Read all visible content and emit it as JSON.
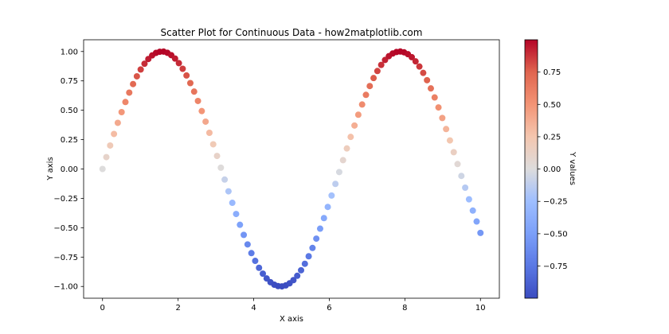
{
  "chart_data": {
    "type": "scatter",
    "title": "Scatter Plot for Continuous Data - how2matplotlib.com",
    "xlabel": "X axis",
    "ylabel": "Y axis",
    "xlim": [
      -0.5,
      10.5
    ],
    "ylim": [
      -1.1,
      1.1
    ],
    "xticks": [
      0,
      2,
      4,
      6,
      8,
      10
    ],
    "xtick_labels": [
      "0",
      "2",
      "4",
      "6",
      "8",
      "10"
    ],
    "yticks": [
      1.0,
      0.75,
      0.5,
      0.25,
      0.0,
      -0.25,
      -0.5,
      -0.75,
      -1.0
    ],
    "ytick_labels": [
      "1.00",
      "0.75",
      "0.50",
      "0.25",
      "0.00",
      "−0.25",
      "−0.50",
      "−0.75",
      "−1.00"
    ],
    "grid": false,
    "series": [
      {
        "x": [
          0.0,
          0.101,
          0.202,
          0.303,
          0.404,
          0.505,
          0.606,
          0.707,
          0.808,
          0.909,
          1.01,
          1.111,
          1.212,
          1.313,
          1.414,
          1.515,
          1.616,
          1.717,
          1.818,
          1.919,
          2.02,
          2.121,
          2.222,
          2.323,
          2.424,
          2.525,
          2.626,
          2.727,
          2.828,
          2.929,
          3.03,
          3.131,
          3.232,
          3.333,
          3.434,
          3.535,
          3.636,
          3.737,
          3.838,
          3.939,
          4.04,
          4.141,
          4.242,
          4.343,
          4.444,
          4.545,
          4.646,
          4.747,
          4.848,
          4.949,
          5.051,
          5.152,
          5.253,
          5.354,
          5.455,
          5.556,
          5.657,
          5.758,
          5.859,
          5.96,
          6.061,
          6.162,
          6.263,
          6.364,
          6.465,
          6.566,
          6.667,
          6.768,
          6.869,
          6.97,
          7.071,
          7.172,
          7.273,
          7.374,
          7.475,
          7.576,
          7.677,
          7.778,
          7.879,
          7.98,
          8.081,
          8.182,
          8.283,
          8.384,
          8.485,
          8.586,
          8.687,
          8.788,
          8.889,
          8.99,
          9.091,
          9.192,
          9.293,
          9.394,
          9.495,
          9.596,
          9.697,
          9.798,
          9.899,
          10.0
        ],
        "y": [
          0.0,
          0.101,
          0.2,
          0.298,
          0.393,
          0.484,
          0.57,
          0.65,
          0.723,
          0.789,
          0.847,
          0.896,
          0.936,
          0.967,
          0.988,
          0.998,
          0.999,
          0.989,
          0.969,
          0.94,
          0.901,
          0.853,
          0.796,
          0.731,
          0.659,
          0.579,
          0.493,
          0.403,
          0.308,
          0.21,
          0.111,
          0.011,
          -0.09,
          -0.19,
          -0.288,
          -0.383,
          -0.475,
          -0.561,
          -0.642,
          -0.716,
          -0.782,
          -0.841,
          -0.891,
          -0.932,
          -0.964,
          -0.985,
          -0.997,
          -0.999,
          -0.991,
          -0.973,
          -0.946,
          -0.909,
          -0.862,
          -0.807,
          -0.743,
          -0.672,
          -0.593,
          -0.508,
          -0.418,
          -0.323,
          -0.226,
          -0.127,
          -0.026,
          0.075,
          0.175,
          0.273,
          0.37,
          0.462,
          0.549,
          0.631,
          0.706,
          0.774,
          0.834,
          0.886,
          0.928,
          0.96,
          0.983,
          0.996,
          1.0,
          0.993,
          0.977,
          0.952,
          0.916,
          0.872,
          0.818,
          0.756,
          0.686,
          0.609,
          0.524,
          0.434,
          0.34,
          0.243,
          0.143,
          0.042,
          -0.059,
          -0.159,
          -0.258,
          -0.354,
          -0.447,
          -0.544
        ]
      }
    ],
    "colormap": "coolwarm",
    "colorbar": {
      "label": "Y values",
      "range": [
        -0.999,
        1.0
      ],
      "ticks": [
        0.75,
        0.5,
        0.25,
        0.0,
        -0.25,
        -0.5,
        -0.75
      ],
      "tick_labels": [
        "0.75",
        "0.50",
        "0.25",
        "0.00",
        "−0.25",
        "−0.50",
        "−0.75"
      ]
    }
  }
}
